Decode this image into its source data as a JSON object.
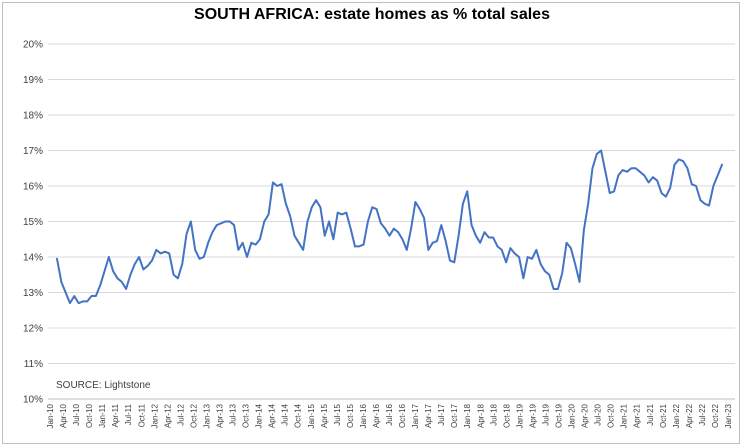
{
  "chart_data": {
    "type": "line",
    "title": "SOUTH AFRICA: estate homes as % total sales",
    "source": "SOURCE: Lightstone",
    "xlabel": "",
    "ylabel": "",
    "ylim": [
      10,
      20
    ],
    "y_ticks": [
      "10%",
      "11%",
      "12%",
      "13%",
      "14%",
      "15%",
      "16%",
      "17%",
      "18%",
      "19%",
      "20%"
    ],
    "x_tick_labels": [
      "Jan-10",
      "Apr-10",
      "Jul-10",
      "Oct-10",
      "Jan-11",
      "Apr-11",
      "Jul-11",
      "Oct-11",
      "Jan-12",
      "Apr-12",
      "Jul-12",
      "Oct-12",
      "Jan-13",
      "Apr-13",
      "Jul-13",
      "Oct-13",
      "Jan-14",
      "Apr-14",
      "Jul-14",
      "Oct-14",
      "Jan-15",
      "Apr-15",
      "Jul-15",
      "Oct-15",
      "Jan-16",
      "Apr-16",
      "Jul-16",
      "Oct-16",
      "Jan-17",
      "Apr-17",
      "Jul-17",
      "Oct-17",
      "Jan-18",
      "Apr-18",
      "Jul-18",
      "Oct-18",
      "Jan-19",
      "Apr-19",
      "Jul-19",
      "Oct-19",
      "Jan-20",
      "Apr-20",
      "Jul-20",
      "Oct-20",
      "Jan-21",
      "Apr-21",
      "Jul-21",
      "Oct-21",
      "Jan-22",
      "Apr-22",
      "Jul-22",
      "Oct-22",
      "Jan-23"
    ],
    "grid": true,
    "line_color": "#4472c4",
    "series": [
      {
        "values": [
          13.95,
          13.3,
          13.0,
          12.7,
          12.9,
          12.7,
          12.75,
          12.75,
          12.9,
          12.9,
          13.2,
          13.6,
          14.0,
          13.6,
          13.4,
          13.3,
          13.1,
          13.5,
          13.8,
          14.0,
          13.65,
          13.75,
          13.9,
          14.2,
          14.1,
          14.15,
          14.1,
          13.5,
          13.4,
          13.8,
          14.65,
          15.0,
          14.2,
          13.95,
          14.0,
          14.4,
          14.7,
          14.9,
          14.95,
          15.0,
          15.0,
          14.9,
          14.2,
          14.4,
          14.0,
          14.4,
          14.35,
          14.5,
          15.0,
          15.2,
          16.1,
          16.0,
          16.05,
          15.5,
          15.15,
          14.6,
          14.4,
          14.2,
          15.0,
          15.4,
          15.6,
          15.4,
          14.6,
          15.0,
          14.5,
          15.25,
          15.2,
          15.25,
          14.8,
          14.3,
          14.3,
          14.35,
          15.0,
          15.4,
          15.35,
          14.95,
          14.8,
          14.6,
          14.8,
          14.7,
          14.5,
          14.2,
          14.8,
          15.55,
          15.35,
          15.1,
          14.2,
          14.4,
          14.45,
          14.9,
          14.45,
          13.9,
          13.85,
          14.6,
          15.5,
          15.85,
          14.9,
          14.6,
          14.4,
          14.7,
          14.55,
          14.55,
          14.3,
          14.2,
          13.85,
          14.25,
          14.1,
          14.0,
          13.4,
          14.0,
          13.95,
          14.2,
          13.8,
          13.6,
          13.5,
          13.1,
          13.1,
          13.55,
          14.4,
          14.25,
          13.8,
          13.3,
          14.75,
          15.5,
          16.5,
          16.9,
          17.0,
          16.4,
          15.8,
          15.85,
          16.3,
          16.45,
          16.4,
          16.5,
          16.5,
          16.4,
          16.3,
          16.1,
          16.25,
          16.15,
          15.8,
          15.7,
          15.95,
          16.6,
          16.75,
          16.7,
          16.5,
          16.05,
          16.0,
          15.6,
          15.5,
          15.45,
          16.0,
          16.3,
          16.6
        ]
      }
    ]
  }
}
